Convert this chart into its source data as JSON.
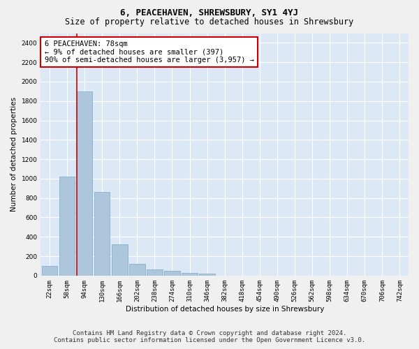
{
  "title": "6, PEACEHAVEN, SHREWSBURY, SY1 4YJ",
  "subtitle": "Size of property relative to detached houses in Shrewsbury",
  "xlabel": "Distribution of detached houses by size in Shrewsbury",
  "ylabel": "Number of detached properties",
  "footer_line1": "Contains HM Land Registry data © Crown copyright and database right 2024.",
  "footer_line2": "Contains public sector information licensed under the Open Government Licence v3.0.",
  "categories": [
    "22sqm",
    "58sqm",
    "94sqm",
    "130sqm",
    "166sqm",
    "202sqm",
    "238sqm",
    "274sqm",
    "310sqm",
    "346sqm",
    "382sqm",
    "418sqm",
    "454sqm",
    "490sqm",
    "526sqm",
    "562sqm",
    "598sqm",
    "634sqm",
    "670sqm",
    "706sqm",
    "742sqm"
  ],
  "bar_values": [
    100,
    1020,
    1900,
    860,
    320,
    120,
    60,
    50,
    30,
    20,
    0,
    0,
    0,
    0,
    0,
    0,
    0,
    0,
    0,
    0,
    0
  ],
  "bar_color": "#aec6dc",
  "bar_edge_color": "#7aaac8",
  "annotation_text": "6 PEACEHAVEN: 78sqm\n← 9% of detached houses are smaller (397)\n90% of semi-detached houses are larger (3,957) →",
  "annotation_box_color": "#ffffff",
  "annotation_box_edge_color": "#cc0000",
  "vline_color": "#cc0000",
  "ylim": [
    0,
    2500
  ],
  "yticks": [
    0,
    200,
    400,
    600,
    800,
    1000,
    1200,
    1400,
    1600,
    1800,
    2000,
    2200,
    2400
  ],
  "background_color": "#dce8f5",
  "grid_color": "#ffffff",
  "fig_background": "#f0f0f0",
  "title_fontsize": 9,
  "subtitle_fontsize": 8.5,
  "axis_label_fontsize": 7.5,
  "tick_fontsize": 6.5,
  "annotation_fontsize": 7.5,
  "footer_fontsize": 6.5
}
